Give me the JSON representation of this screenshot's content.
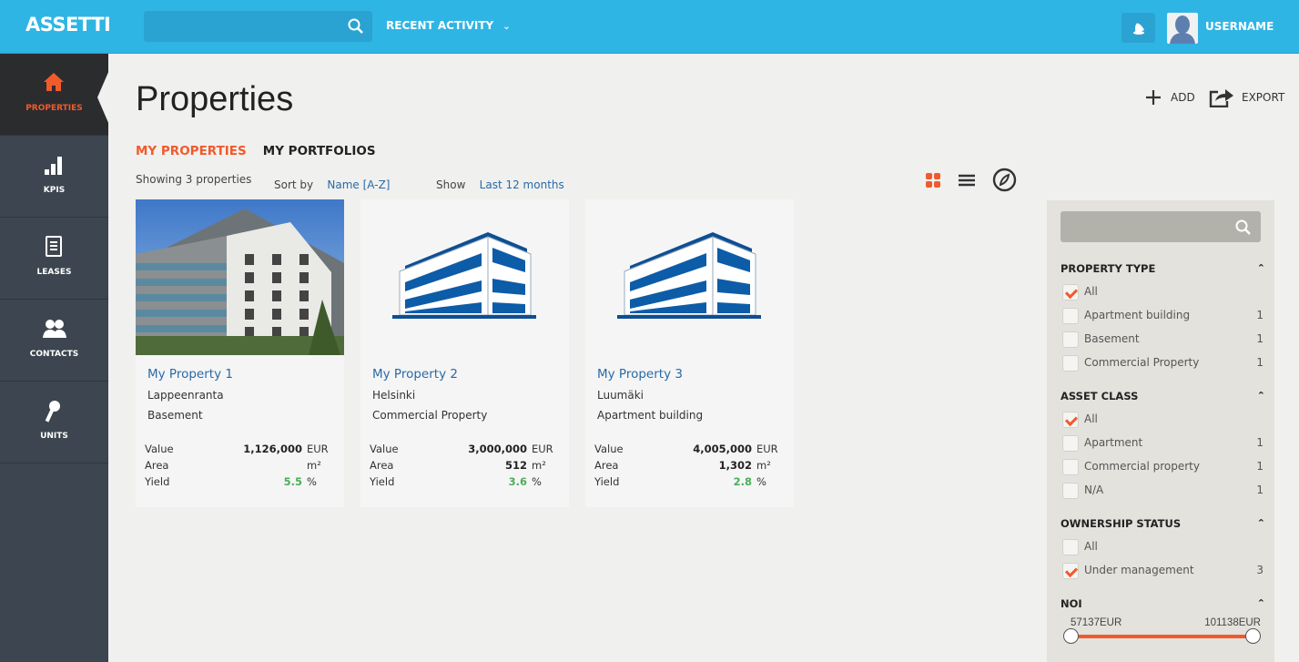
{
  "header": {
    "logo": "ASSETTI",
    "search_placeholder": "",
    "recent_activity": "RECENT ACTIVITY",
    "username": "USERNAME",
    "accent": "#2fb5e4"
  },
  "sidebar": {
    "items": [
      {
        "label": "PROPERTIES",
        "icon": "home-icon",
        "active": true
      },
      {
        "label": "KPIS",
        "icon": "bar-chart-icon"
      },
      {
        "label": "LEASES",
        "icon": "document-icon"
      },
      {
        "label": "CONTACTS",
        "icon": "contacts-icon"
      },
      {
        "label": "UNITS",
        "icon": "key-icon"
      }
    ]
  },
  "main": {
    "title": "Properties",
    "add": "ADD",
    "export": "EXPORT",
    "tabs": [
      {
        "label": "MY PROPERTIES",
        "active": true
      },
      {
        "label": "MY PORTFOLIOS"
      }
    ],
    "showing": "Showing 3 properties",
    "sort_label": "Sort by",
    "sort_value": "Name [A-Z]",
    "show_label": "Show",
    "show_value": "Last 12 months",
    "view_modes": [
      "grid-icon",
      "list-icon",
      "compass-icon"
    ],
    "labels": {
      "value": "Value",
      "area": "Area",
      "yield": "Yield",
      "eur": "EUR",
      "m2": "m²",
      "pct": "%"
    },
    "properties": [
      {
        "name": "My Property 1",
        "city": "Lappeenranta",
        "type": "Basement",
        "value": "1,126,000",
        "area": "",
        "yield": "5.5",
        "image": "photo"
      },
      {
        "name": "My Property 2",
        "city": "Helsinki",
        "type": "Commercial Property",
        "value": "3,000,000",
        "area": "512",
        "yield": "3.6",
        "image": "building-icon"
      },
      {
        "name": "My Property 3",
        "city": "Luumäki",
        "type": "Apartment building",
        "value": "4,005,000",
        "area": "1,302",
        "yield": "2.8",
        "image": "building-icon"
      }
    ]
  },
  "filters": {
    "groups": [
      {
        "title": "PROPERTY TYPE",
        "options": [
          {
            "label": "All",
            "checked": true,
            "count": ""
          },
          {
            "label": "Apartment building",
            "count": "1"
          },
          {
            "label": "Basement",
            "count": "1"
          },
          {
            "label": "Commercial Property",
            "count": "1"
          }
        ]
      },
      {
        "title": "ASSET CLASS",
        "options": [
          {
            "label": "All",
            "checked": true,
            "count": ""
          },
          {
            "label": "Apartment",
            "count": "1"
          },
          {
            "label": "Commercial property",
            "count": "1"
          },
          {
            "label": "N/A",
            "count": "1"
          }
        ]
      },
      {
        "title": "OWNERSHIP STATUS",
        "options": [
          {
            "label": "All",
            "count": ""
          },
          {
            "label": "Under management",
            "checked": true,
            "count": "3"
          }
        ]
      }
    ],
    "noi": {
      "title": "NOI",
      "min": "57137EUR",
      "max": "101138EUR"
    }
  }
}
